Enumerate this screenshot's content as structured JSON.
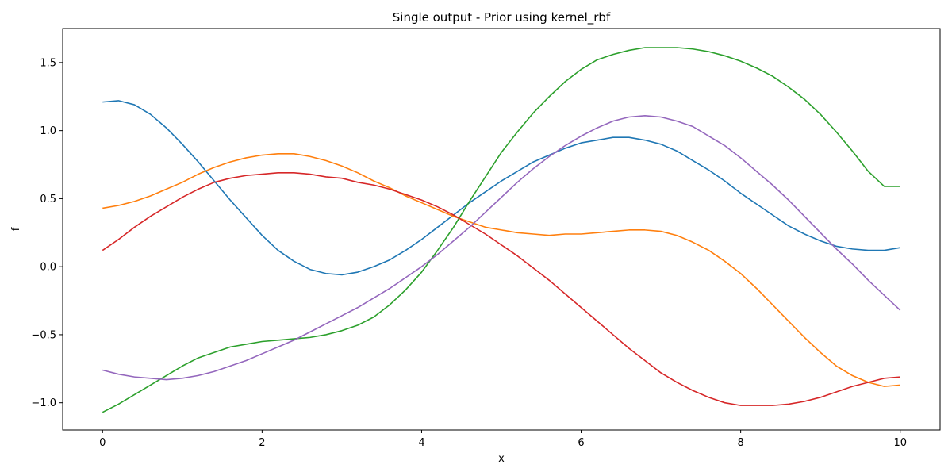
{
  "chart_data": {
    "type": "line",
    "title": "Single output - Prior using kernel_rbf",
    "xlabel": "x",
    "ylabel": "f",
    "xlim": [
      -0.5,
      10.5
    ],
    "ylim": [
      -1.2,
      1.75
    ],
    "xticks": [
      0,
      2,
      4,
      6,
      8,
      10
    ],
    "xtick_labels": [
      "0",
      "2",
      "4",
      "6",
      "8",
      "10"
    ],
    "yticks": [
      -1.0,
      -0.5,
      0.0,
      0.5,
      1.0,
      1.5
    ],
    "ytick_labels": [
      "−1.0",
      "−0.5",
      "0.0",
      "0.5",
      "1.0",
      "1.5"
    ],
    "grid": false,
    "x": [
      0.0,
      0.2,
      0.4,
      0.6,
      0.8,
      1.0,
      1.2,
      1.4,
      1.6,
      1.8,
      2.0,
      2.2,
      2.4,
      2.6,
      2.8,
      3.0,
      3.2,
      3.4,
      3.6,
      3.8,
      4.0,
      4.2,
      4.4,
      4.6,
      4.8,
      5.0,
      5.2,
      5.4,
      5.6,
      5.8,
      6.0,
      6.2,
      6.4,
      6.6,
      6.8,
      7.0,
      7.2,
      7.4,
      7.6,
      7.8,
      8.0,
      8.2,
      8.4,
      8.6,
      8.8,
      9.0,
      9.2,
      9.4,
      9.6,
      9.8,
      10.0
    ],
    "series": [
      {
        "color": "#1f77b4",
        "values": [
          1.21,
          1.22,
          1.19,
          1.12,
          1.02,
          0.9,
          0.77,
          0.63,
          0.49,
          0.36,
          0.23,
          0.12,
          0.04,
          -0.02,
          -0.05,
          -0.06,
          -0.04,
          0.0,
          0.05,
          0.12,
          0.2,
          0.29,
          0.38,
          0.47,
          0.55,
          0.63,
          0.7,
          0.77,
          0.82,
          0.87,
          0.91,
          0.93,
          0.95,
          0.95,
          0.93,
          0.9,
          0.85,
          0.78,
          0.71,
          0.63,
          0.54,
          0.46,
          0.38,
          0.3,
          0.24,
          0.19,
          0.15,
          0.13,
          0.12,
          0.12,
          0.14
        ]
      },
      {
        "color": "#ff7f0e",
        "values": [
          0.43,
          0.45,
          0.48,
          0.52,
          0.57,
          0.62,
          0.68,
          0.73,
          0.77,
          0.8,
          0.82,
          0.83,
          0.83,
          0.81,
          0.78,
          0.74,
          0.69,
          0.63,
          0.58,
          0.52,
          0.47,
          0.42,
          0.37,
          0.33,
          0.29,
          0.27,
          0.25,
          0.24,
          0.23,
          0.24,
          0.24,
          0.25,
          0.26,
          0.27,
          0.27,
          0.26,
          0.23,
          0.18,
          0.12,
          0.04,
          -0.05,
          -0.16,
          -0.28,
          -0.4,
          -0.52,
          -0.63,
          -0.73,
          -0.8,
          -0.85,
          -0.88,
          -0.87
        ]
      },
      {
        "color": "#2ca02c",
        "values": [
          -1.07,
          -1.01,
          -0.94,
          -0.87,
          -0.8,
          -0.73,
          -0.67,
          -0.63,
          -0.59,
          -0.57,
          -0.55,
          -0.54,
          -0.53,
          -0.52,
          -0.5,
          -0.47,
          -0.43,
          -0.37,
          -0.28,
          -0.17,
          -0.04,
          0.12,
          0.29,
          0.48,
          0.66,
          0.84,
          0.99,
          1.13,
          1.25,
          1.36,
          1.45,
          1.52,
          1.56,
          1.59,
          1.61,
          1.61,
          1.61,
          1.6,
          1.58,
          1.55,
          1.51,
          1.46,
          1.4,
          1.32,
          1.23,
          1.12,
          0.99,
          0.85,
          0.7,
          0.59,
          0.59
        ]
      },
      {
        "color": "#d62728",
        "values": [
          0.12,
          0.2,
          0.29,
          0.37,
          0.44,
          0.51,
          0.57,
          0.62,
          0.65,
          0.67,
          0.68,
          0.69,
          0.69,
          0.68,
          0.66,
          0.65,
          0.62,
          0.6,
          0.57,
          0.53,
          0.49,
          0.44,
          0.38,
          0.31,
          0.24,
          0.16,
          0.08,
          -0.01,
          -0.1,
          -0.2,
          -0.3,
          -0.4,
          -0.5,
          -0.6,
          -0.69,
          -0.78,
          -0.85,
          -0.91,
          -0.96,
          -1.0,
          -1.02,
          -1.02,
          -1.02,
          -1.01,
          -0.99,
          -0.96,
          -0.92,
          -0.88,
          -0.85,
          -0.82,
          -0.81
        ]
      },
      {
        "color": "#9467bd",
        "values": [
          -0.76,
          -0.79,
          -0.81,
          -0.82,
          -0.83,
          -0.82,
          -0.8,
          -0.77,
          -0.73,
          -0.69,
          -0.64,
          -0.59,
          -0.54,
          -0.48,
          -0.42,
          -0.36,
          -0.3,
          -0.23,
          -0.16,
          -0.08,
          0.0,
          0.09,
          0.19,
          0.29,
          0.4,
          0.51,
          0.62,
          0.72,
          0.81,
          0.89,
          0.96,
          1.02,
          1.07,
          1.1,
          1.11,
          1.1,
          1.07,
          1.03,
          0.96,
          0.89,
          0.8,
          0.7,
          0.6,
          0.49,
          0.37,
          0.25,
          0.13,
          0.02,
          -0.1,
          -0.21,
          -0.32
        ]
      }
    ]
  }
}
